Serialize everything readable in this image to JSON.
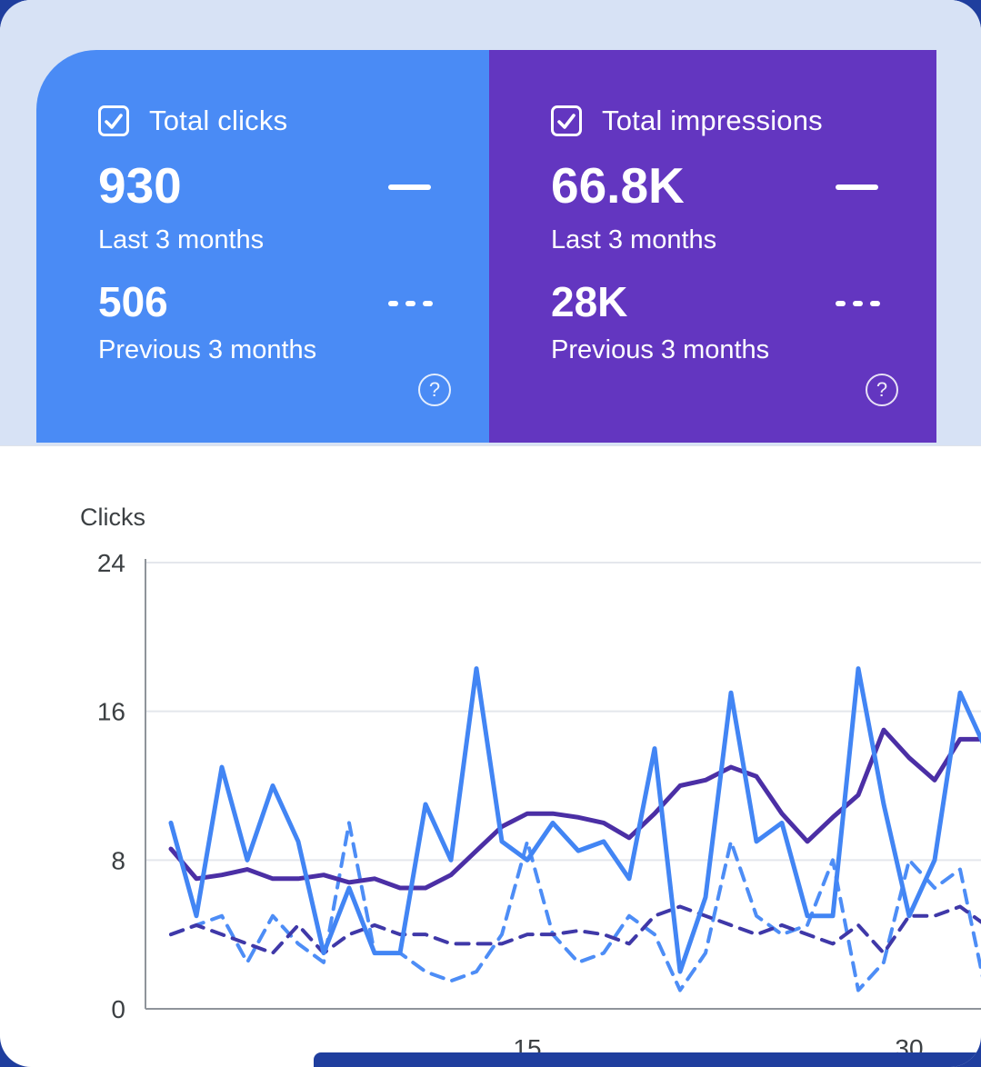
{
  "cards": {
    "clicks": {
      "title": "Total clicks",
      "current_value": "930",
      "current_label": "Last 3 months",
      "previous_value": "506",
      "previous_label": "Previous 3 months",
      "color": "#4a8bf5"
    },
    "impressions": {
      "title": "Total impressions",
      "current_value": "66.8K",
      "current_label": "Last 3 months",
      "previous_value": "28K",
      "previous_label": "Previous 3 months",
      "color": "#6336c0"
    },
    "help_icon": "?"
  },
  "chart": {
    "title": "Clicks"
  },
  "chart_data": {
    "type": "line",
    "title": "Clicks",
    "ylim": [
      0,
      24
    ],
    "y_ticks": [
      0,
      8,
      16,
      24
    ],
    "x_ticks": [
      15,
      30
    ],
    "x_range_days": [
      1,
      33
    ],
    "grid": true,
    "legend_position": "in-cards",
    "series": [
      {
        "name": "clicks-last-3-months",
        "style": "solid",
        "color": "#4285f4",
        "values": [
          10,
          5,
          13,
          8,
          12,
          9,
          3,
          6.5,
          3,
          3,
          11,
          8,
          18.3,
          9,
          8,
          10,
          8.5,
          9,
          7,
          14,
          2,
          6,
          17,
          9,
          10,
          5,
          5,
          18.3,
          11,
          5,
          8,
          17,
          14
        ]
      },
      {
        "name": "impressions-last-3-months-scaled",
        "style": "solid",
        "color": "#4b2fa5",
        "values": [
          8.6,
          7,
          7.2,
          7.5,
          7,
          7,
          7.2,
          6.8,
          7,
          6.5,
          6.5,
          7.2,
          8.5,
          9.8,
          10.5,
          10.5,
          10.3,
          10,
          9.2,
          10.5,
          12,
          12.3,
          13,
          12.5,
          10.5,
          9,
          10.3,
          11.5,
          15,
          13.5,
          12.3,
          14.5,
          14.5
        ]
      },
      {
        "name": "clicks-previous-3-months",
        "style": "dashed",
        "color": "#4d8df6",
        "values": [
          4,
          4.5,
          5,
          2.5,
          5,
          3.5,
          2.5,
          10,
          3,
          3,
          2,
          1.5,
          2,
          4,
          9,
          4,
          2.5,
          3,
          5,
          4,
          1,
          3,
          9,
          5,
          4,
          4.5,
          8,
          1,
          2.5,
          8,
          6.5,
          7.5,
          1
        ]
      },
      {
        "name": "impressions-previous-3-months-scaled",
        "style": "dashed",
        "color": "#3f38a8",
        "values": [
          4,
          4.5,
          4,
          3.5,
          3,
          4.5,
          3,
          4,
          4.5,
          4,
          4,
          3.5,
          3.5,
          3.5,
          4,
          4,
          4.2,
          4,
          3.5,
          5,
          5.5,
          5,
          4.5,
          4,
          4.5,
          4,
          3.5,
          4.5,
          3,
          5,
          5,
          5.5,
          4.5
        ]
      }
    ]
  },
  "colors": {
    "background": "#1f3e9e",
    "header_band": "#d7e2f5",
    "clicks_card": "#4a8bf5",
    "impressions_card": "#6336c0",
    "grid_line": "#e4e7ec",
    "axis_line": "#8f949a",
    "tick_label": "#3c4043"
  }
}
